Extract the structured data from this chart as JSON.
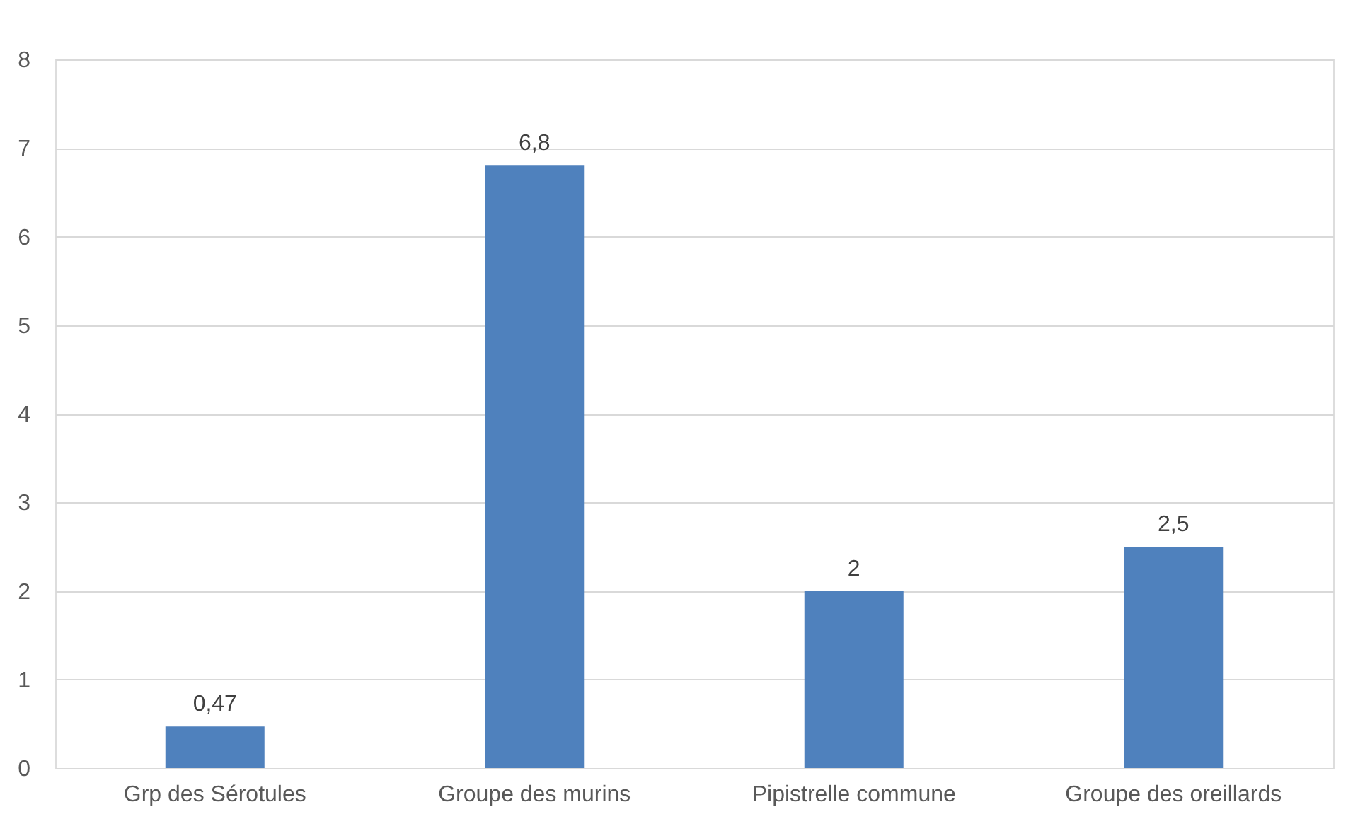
{
  "chart_data": {
    "type": "bar",
    "categories": [
      "Grp des Sérotules",
      "Groupe des murins",
      "Pipistrelle commune",
      "Groupe des oreillards"
    ],
    "values": [
      0.47,
      6.8,
      2,
      2.5
    ],
    "value_labels": [
      "0,47",
      "6,8",
      "2",
      "2,5"
    ],
    "color": "#4f81bd",
    "ylim": [
      0,
      8
    ],
    "yticks": [
      0,
      1,
      2,
      3,
      4,
      5,
      6,
      7,
      8
    ],
    "grid": "y"
  }
}
